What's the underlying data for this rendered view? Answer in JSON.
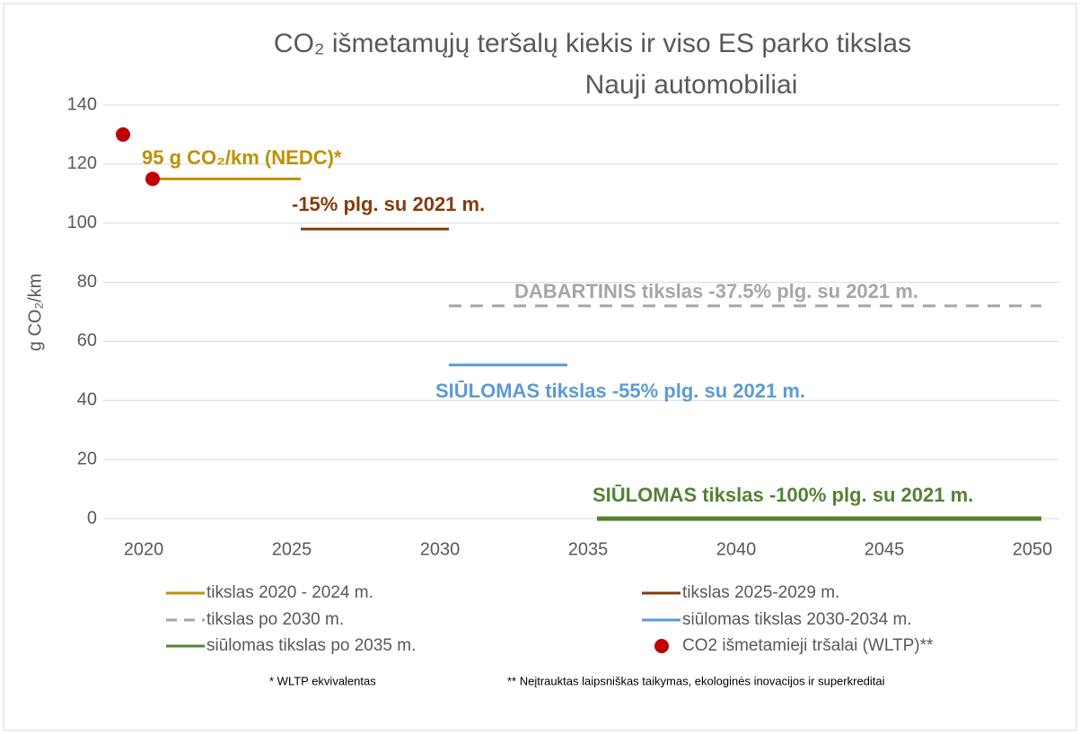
{
  "chart_data": {
    "type": "line",
    "title": "CO₂ išmetamųjų teršalų kiekis ir viso ES parko tikslas",
    "subtitle": "Nauji automobiliai",
    "y_label": "g CO₂/km",
    "xlim": [
      2019,
      2050
    ],
    "xticks": [
      2020,
      2025,
      2030,
      2035,
      2040,
      2045,
      2050
    ],
    "ylim": [
      0,
      140
    ],
    "yticks": [
      0,
      20,
      40,
      60,
      80,
      100,
      120,
      140
    ],
    "grid": true,
    "series": [
      {
        "name": "tikslas 2020 - 2024 m.",
        "color": "#bf9000",
        "x": [
          2020,
          2025
        ],
        "values": [
          115,
          115
        ],
        "label": "95 g CO₂/km (NEDC)*"
      },
      {
        "name": "tikslas 2025-2029 m.",
        "color": "#843c0c",
        "x": [
          2025,
          2030
        ],
        "values": [
          98,
          98
        ],
        "label": "-15% plg. su 2021 m."
      },
      {
        "name": "tikslas po 2030 m.",
        "color": "#a6a6a6",
        "dashed": true,
        "x": [
          2030,
          2050
        ],
        "values": [
          72,
          72
        ],
        "label": "DABARTINIS tikslas -37.5% plg. su 2021 m."
      },
      {
        "name": "siūlomas tikslas 2030-2034 m.",
        "color": "#5b9bd5",
        "x": [
          2030,
          2034
        ],
        "values": [
          52,
          52
        ],
        "label": "SIŪLOMAS tikslas -55% plg. su 2021 m."
      },
      {
        "name": "siūlomas tikslas po 2035 m.",
        "color": "#548235",
        "x": [
          2035,
          2050
        ],
        "values": [
          0,
          0
        ],
        "label": "SIŪLOMAS tikslas -100% plg. su 2021 m."
      },
      {
        "name": "CO2 išmetamieji tršalai (WLTP)**",
        "color": "#c00000",
        "markers": true,
        "x": [
          2019,
          2020
        ],
        "values": [
          130,
          115
        ]
      }
    ],
    "footnotes": [
      "* WLTP ekvivalentas",
      "** Neįtrauktas laipsniškas taikymas, ekologinės inovacijos ir superkreditai"
    ]
  }
}
